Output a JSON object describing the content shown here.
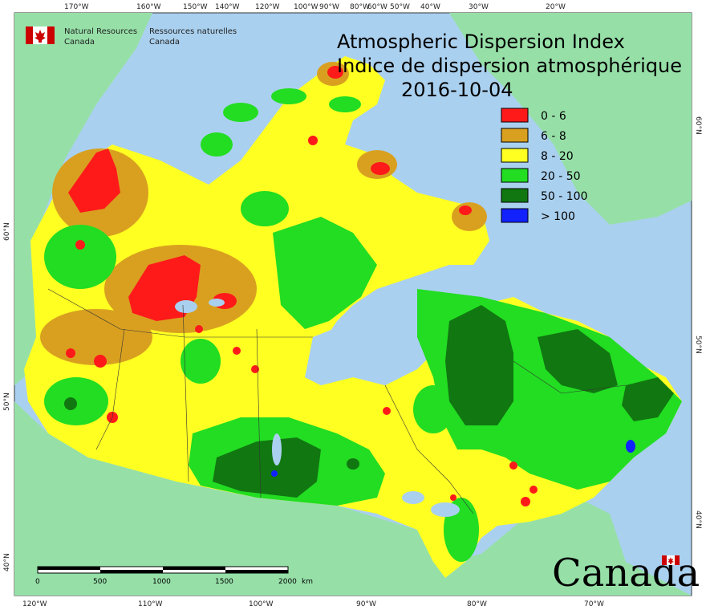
{
  "title": {
    "en": "Atmospheric Dispersion Index",
    "fr": "Indice de dispersion atmosphérique",
    "date": "2016-10-04"
  },
  "agency": {
    "en_line1": "Natural Resources",
    "en_line2": "Canada",
    "fr_line1": "Ressources naturelles",
    "fr_line2": "Canada"
  },
  "wordmark": "Canada",
  "legend": [
    {
      "label": "0 - 6",
      "color": "#ff1a1a"
    },
    {
      "label": "6 - 8",
      "color": "#d9a020"
    },
    {
      "label": "8 - 20",
      "color": "#ffff22"
    },
    {
      "label": "20 - 50",
      "color": "#22dd22"
    },
    {
      "label": "50 - 100",
      "color": "#117711"
    },
    {
      "label": "> 100",
      "color": "#1122ff"
    }
  ],
  "scale_bar": {
    "ticks": [
      "0",
      "500",
      "1000",
      "1500",
      "2000"
    ],
    "unit": "km"
  },
  "axes": {
    "top_lon": [
      "170°W",
      "160°W",
      "150°W",
      "140°W",
      "120°W",
      "100°W",
      "90°W",
      "80°W",
      "60°W",
      "50°W",
      "40°W",
      "30°W",
      "20°W"
    ],
    "bottom_lon": [
      "120°W",
      "110°W",
      "100°W",
      "90°W",
      "80°W",
      "70°W"
    ],
    "left_lat": [
      "60°N",
      "50°N",
      "40°N"
    ],
    "right_lat": [
      "60°N",
      "50°N",
      "40°N"
    ]
  },
  "colors": {
    "ocean": "#aad0ef",
    "foreign_land": "#96e0a8",
    "boundary": "#333333"
  }
}
